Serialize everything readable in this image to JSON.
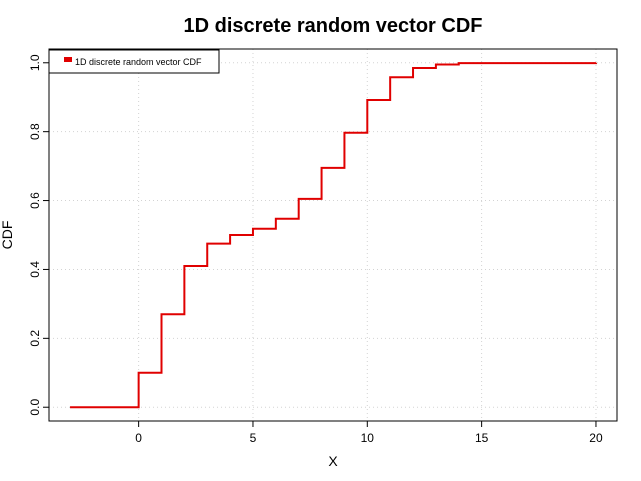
{
  "chart_data": {
    "type": "line",
    "step": true,
    "title": "1D discrete random vector CDF",
    "xlabel": "X",
    "ylabel": "CDF",
    "xlim": [
      -3,
      20
    ],
    "ylim": [
      0,
      1
    ],
    "xticks": [
      0,
      5,
      10,
      15,
      20
    ],
    "yticks": [
      0.0,
      0.2,
      0.4,
      0.6,
      0.8,
      1.0
    ],
    "xtick_labels": [
      "0",
      "5",
      "10",
      "15",
      "20"
    ],
    "ytick_labels": [
      "0.0",
      "0.2",
      "0.4",
      "0.6",
      "0.8",
      "1.0"
    ],
    "grid": true,
    "legend": "top-left",
    "series": [
      {
        "name": "1D discrete random vector CDF",
        "color": "#e00000",
        "x": [
          -3,
          0,
          1,
          2,
          3,
          4,
          5,
          6,
          7,
          8,
          9,
          10,
          11,
          12,
          13,
          14,
          20
        ],
        "y": [
          0.0,
          0.1,
          0.27,
          0.41,
          0.475,
          0.5,
          0.518,
          0.547,
          0.605,
          0.695,
          0.797,
          0.892,
          0.958,
          0.985,
          0.995,
          0.999,
          1.0
        ]
      }
    ]
  }
}
